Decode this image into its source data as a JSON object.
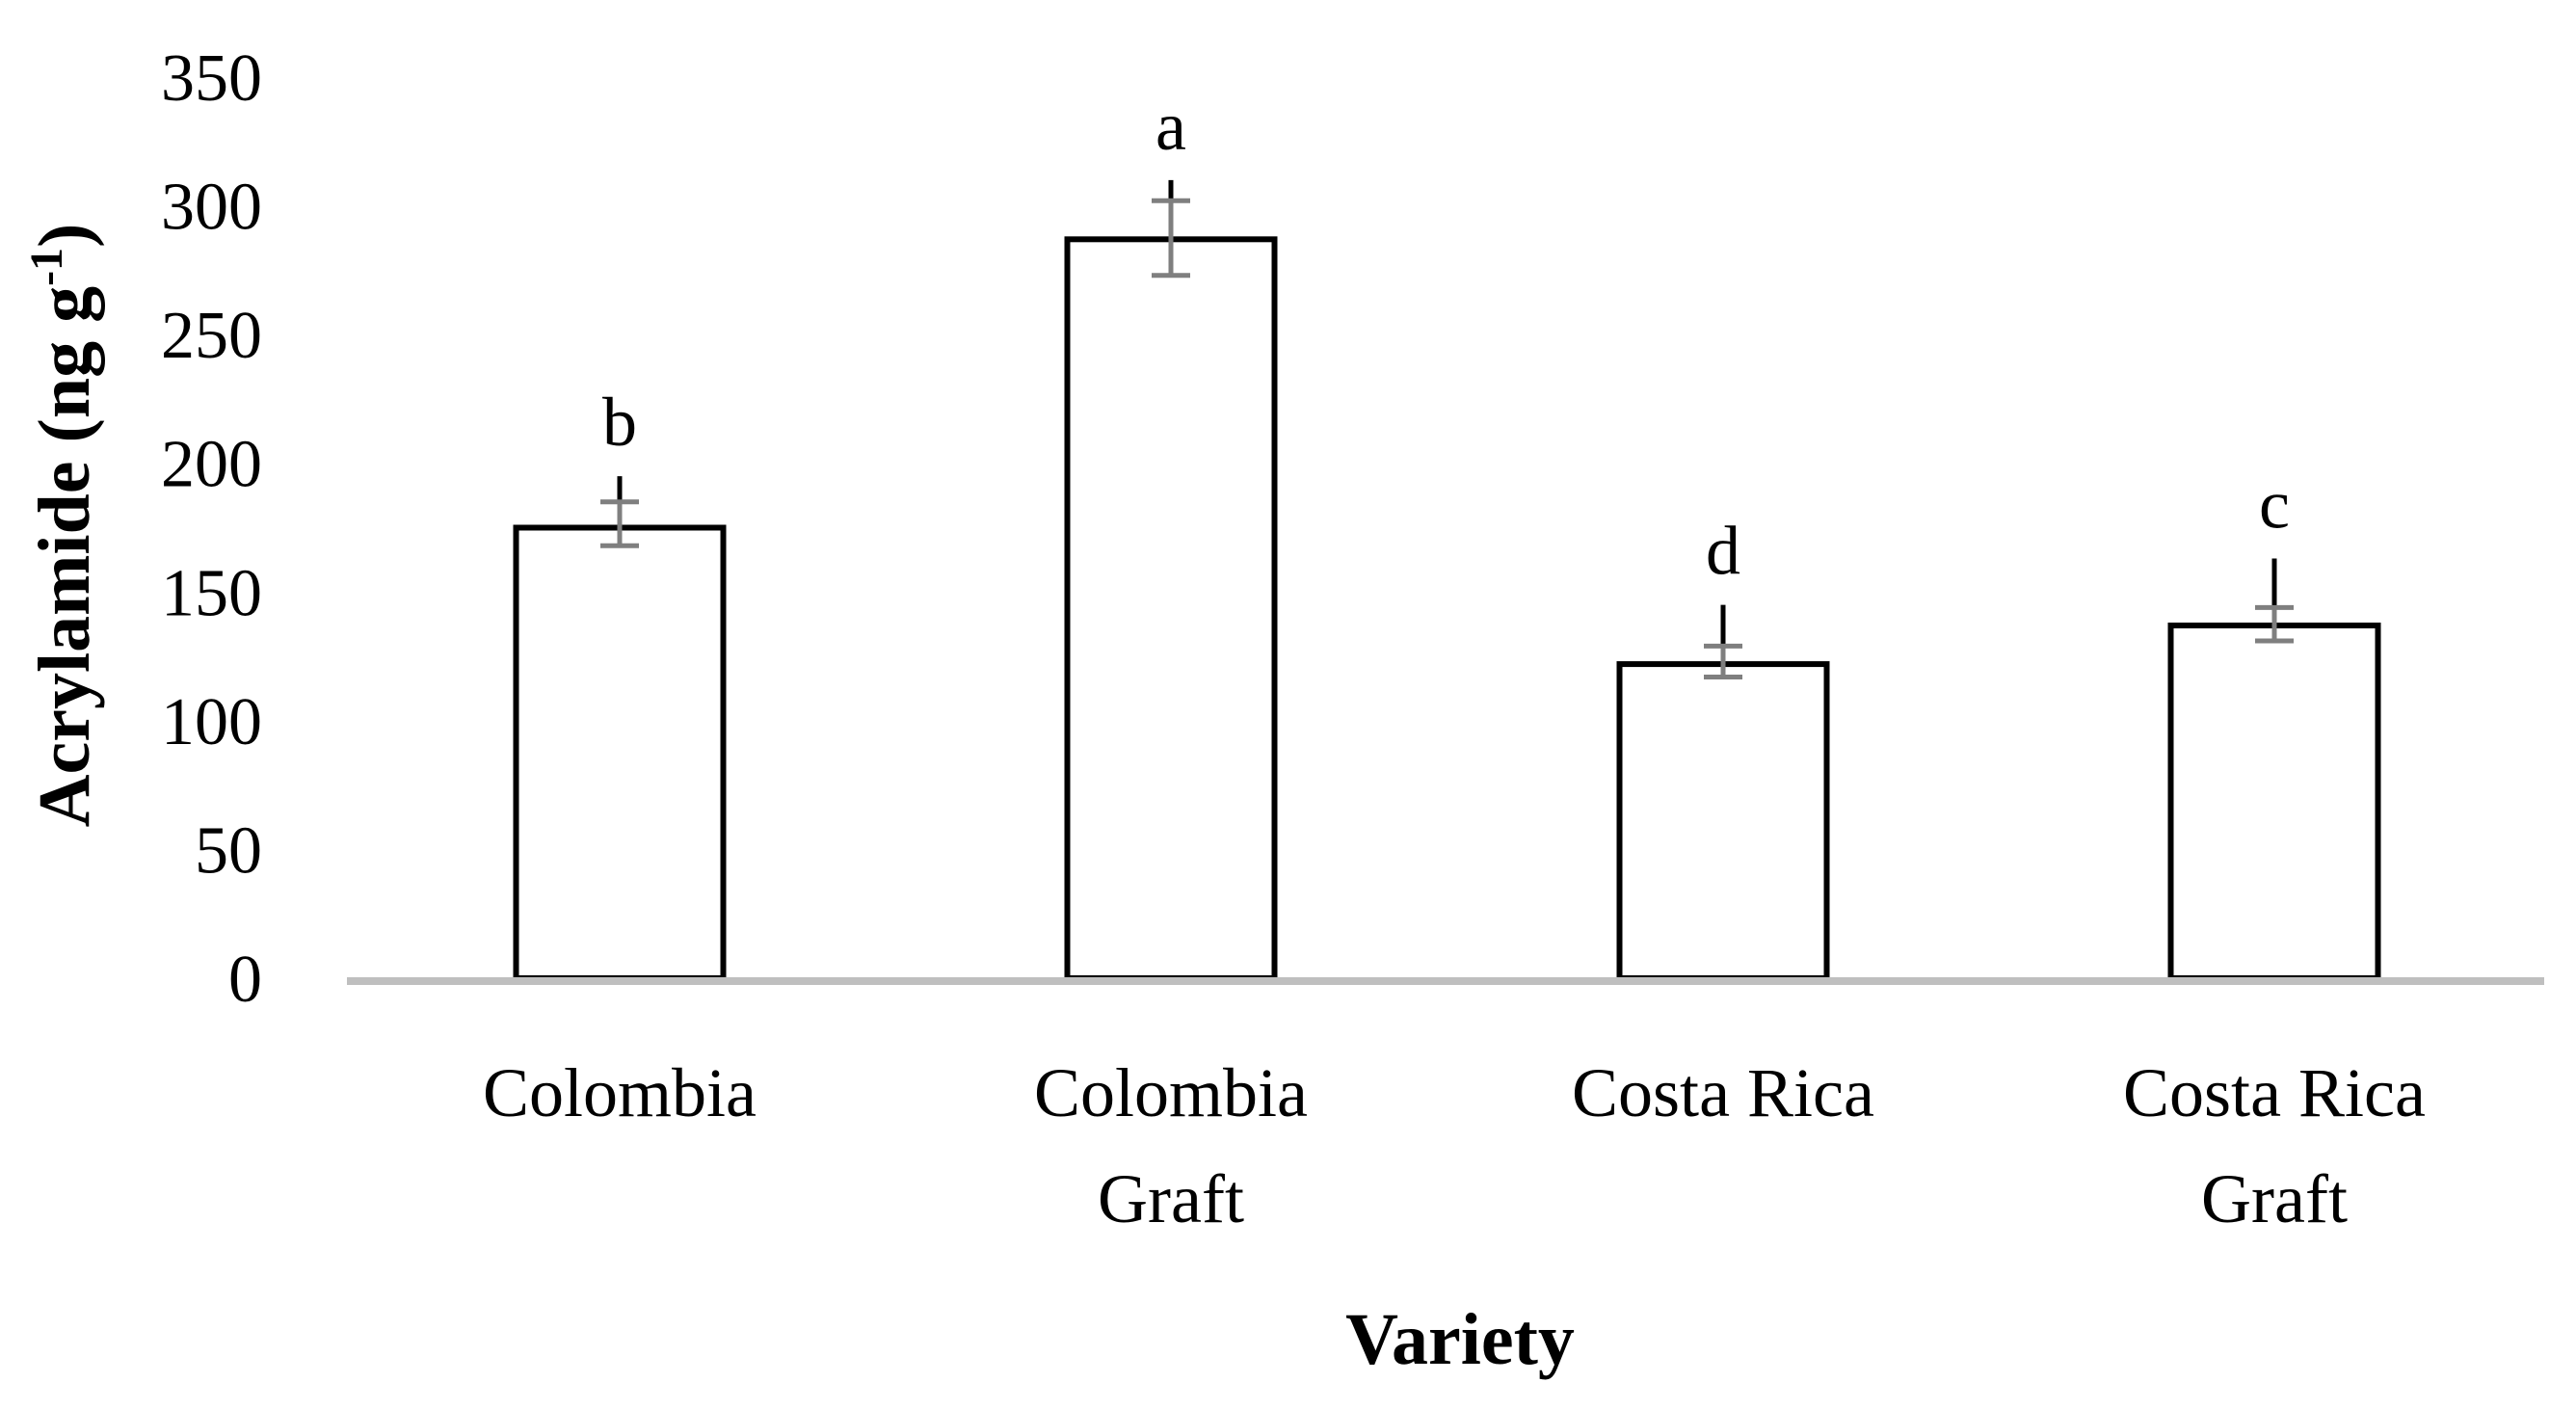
{
  "chart_data": {
    "type": "bar",
    "categories": [
      [
        "Colombia"
      ],
      [
        "Colombia",
        "Graft"
      ],
      [
        "Costa Rica"
      ],
      [
        "Costa Rica",
        "Graft"
      ]
    ],
    "values": [
      175,
      287,
      122,
      137
    ],
    "error_bars": [
      {
        "upper": 195,
        "lower": 168,
        "inner_upper": 185
      },
      {
        "upper": 310,
        "lower": 273,
        "inner_upper": 302
      },
      {
        "upper": 145,
        "lower": 117,
        "inner_upper": 129
      },
      {
        "upper": 163,
        "lower": 131,
        "inner_upper": 144
      }
    ],
    "significance_labels": [
      "b",
      "a",
      "d",
      "c"
    ],
    "xlabel": "Variety",
    "ylabel": {
      "main": "Acrylamide (ng g",
      "superscript": "-1",
      "close": ")"
    },
    "ylim": [
      0,
      350
    ],
    "yticks": [
      0,
      50,
      100,
      150,
      200,
      250,
      300,
      350
    ],
    "grid": false,
    "legend": "none",
    "colors": {
      "bar_fill": "#ffffff",
      "bar_stroke": "#000000",
      "baseline": "#bfbfbf",
      "error_outer": "#000000",
      "error_inner": "#7f7f7f"
    }
  }
}
